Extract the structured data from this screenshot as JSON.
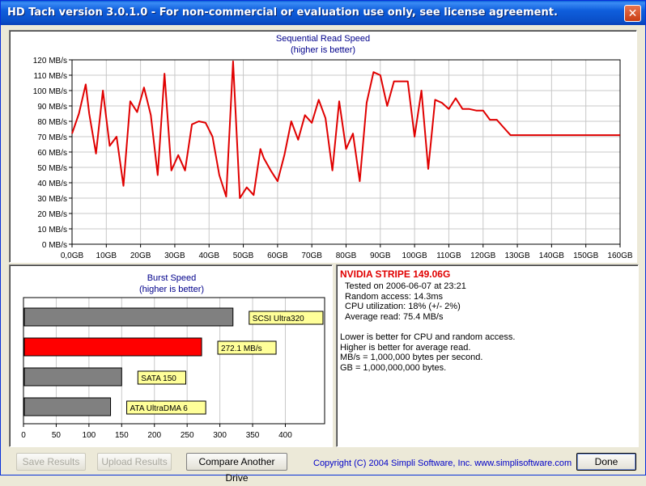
{
  "window": {
    "title": "HD Tach version 3.0.1.0  - For non-commercial or evaluation use only, see license agreement."
  },
  "seq_chart": {
    "title": "Sequential Read Speed",
    "subtitle": "(higher is better)"
  },
  "burst_chart": {
    "title": "Burst Speed",
    "subtitle": "(higher is better)"
  },
  "chart_data": [
    {
      "type": "line",
      "title": "Sequential Read Speed",
      "subtitle": "(higher is better)",
      "y_ticks": [
        "0 MB/s",
        "10 MB/s",
        "20 MB/s",
        "30 MB/s",
        "40 MB/s",
        "50 MB/s",
        "60 MB/s",
        "70 MB/s",
        "80 MB/s",
        "90 MB/s",
        "100 MB/s",
        "110 MB/s",
        "120 MB/s"
      ],
      "x_ticks": [
        "0,0GB",
        "10GB",
        "20GB",
        "30GB",
        "40GB",
        "50GB",
        "60GB",
        "70GB",
        "80GB",
        "90GB",
        "100GB",
        "110GB",
        "120GB",
        "130GB",
        "140GB",
        "150GB",
        "160GB"
      ],
      "ylim": [
        0,
        120
      ],
      "xlim": [
        0,
        160
      ],
      "grid": true,
      "series": [
        {
          "color": "#e00000",
          "x": [
            0,
            2,
            4,
            5,
            7,
            9,
            11,
            13,
            15,
            17,
            19,
            21,
            23,
            25,
            27,
            29,
            31,
            33,
            35,
            37,
            39,
            41,
            43,
            45,
            47,
            49,
            51,
            53,
            55,
            56,
            58,
            60,
            62,
            64,
            66,
            68,
            70,
            72,
            74,
            76,
            78,
            80,
            82,
            84,
            86,
            88,
            90,
            92,
            94,
            96,
            98,
            100,
            102,
            104,
            106,
            108,
            110,
            112,
            114,
            116,
            118,
            120,
            122,
            124,
            126,
            128,
            130,
            132,
            134,
            136,
            138,
            140,
            142,
            144,
            146,
            148,
            150,
            152,
            154,
            156,
            158,
            160
          ],
          "y": [
            72,
            85,
            104,
            85,
            59,
            100,
            64,
            70,
            38,
            93,
            86,
            102,
            84,
            45,
            111,
            48,
            58,
            48,
            78,
            80,
            79,
            70,
            45,
            31,
            119,
            30,
            37,
            32,
            62,
            56,
            48,
            41,
            58,
            80,
            68,
            84,
            79,
            94,
            82,
            48,
            93,
            62,
            72,
            41,
            92,
            112,
            110,
            90,
            106,
            106,
            106,
            70,
            100,
            49,
            94,
            92,
            88,
            95,
            88,
            88,
            87,
            87,
            81,
            81,
            76,
            71,
            71,
            71,
            71,
            71,
            71,
            71,
            71,
            71,
            71,
            71,
            71,
            71,
            71,
            71,
            71,
            71
          ]
        }
      ]
    },
    {
      "type": "bar",
      "title": "Burst Speed",
      "subtitle": "(higher is better)",
      "orientation": "horizontal",
      "xlim": [
        0,
        460
      ],
      "x_ticks": [
        "0",
        "50",
        "100",
        "150",
        "200",
        "250",
        "300",
        "350",
        "400"
      ],
      "grid": true,
      "bars": [
        {
          "label": "SCSI Ultra320",
          "value": 320,
          "color": "#808080"
        },
        {
          "label": "272.1 MB/s",
          "value": 272.1,
          "color": "#ff0000"
        },
        {
          "label": "SATA 150",
          "value": 150,
          "color": "#808080"
        },
        {
          "label": "ATA UltraDMA 6",
          "value": 133,
          "color": "#808080"
        }
      ]
    }
  ],
  "info": {
    "drive_name": "NVIDIA STRIPE 149.06G",
    "tested_on": "Tested on 2006-06-07 at 23:21",
    "random_access": "Random access: 14.3ms",
    "cpu_util": "CPU utilization: 18% (+/- 2%)",
    "avg_read": "Average read: 75.4 MB/s",
    "note1": "Lower is better for CPU and random access.",
    "note2": "Higher is better for average read.",
    "note3": "MB/s = 1,000,000 bytes per second.",
    "note4": "GB = 1,000,000,000 bytes."
  },
  "buttons": {
    "save": "Save Results",
    "upload": "Upload Results",
    "compare": "Compare Another Drive",
    "done": "Done"
  },
  "footer": {
    "copyright": "Copyright (C) 2004 Simpli Software, Inc. www.simplisoftware.com"
  }
}
